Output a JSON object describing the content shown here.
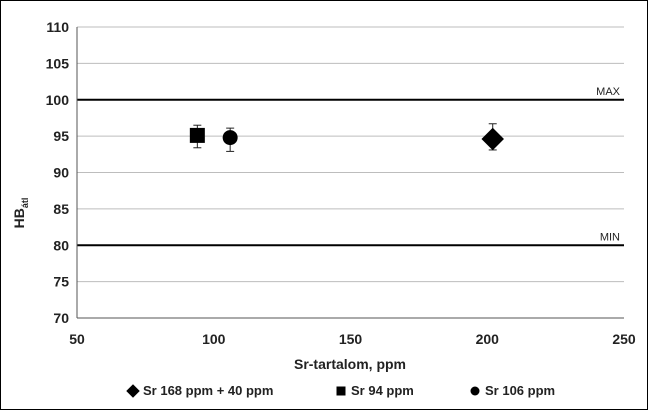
{
  "chart_data": {
    "type": "scatter",
    "xlabel": "Sr-tartalom, ppm",
    "ylabel_main": "HB",
    "ylabel_sub": "átl",
    "xlim": [
      50,
      250
    ],
    "ylim": [
      70,
      110
    ],
    "x_ticks": [
      50,
      100,
      150,
      200,
      250
    ],
    "y_ticks": [
      70,
      75,
      80,
      85,
      90,
      95,
      100,
      105,
      110
    ],
    "grid": true,
    "legend_position": "bottom",
    "reference_lines": [
      {
        "label": "MAX",
        "y": 100
      },
      {
        "label": "MIN",
        "y": 80
      }
    ],
    "series": [
      {
        "name": "Sr 168 ppm + 40 ppm",
        "marker": "diamond",
        "x": 202,
        "y": 94.6,
        "err_low": 1.5,
        "err_high": 2.1
      },
      {
        "name": "Sr 94 ppm",
        "marker": "square",
        "x": 94,
        "y": 95.1,
        "err_low": 1.7,
        "err_high": 1.4
      },
      {
        "name": "Sr 106 ppm",
        "marker": "circle",
        "x": 106,
        "y": 94.8,
        "err_low": 1.9,
        "err_high": 1.3
      }
    ],
    "colors": {
      "marker": "#000000",
      "grid": "#bdbdbd",
      "reference": "#000000"
    }
  }
}
